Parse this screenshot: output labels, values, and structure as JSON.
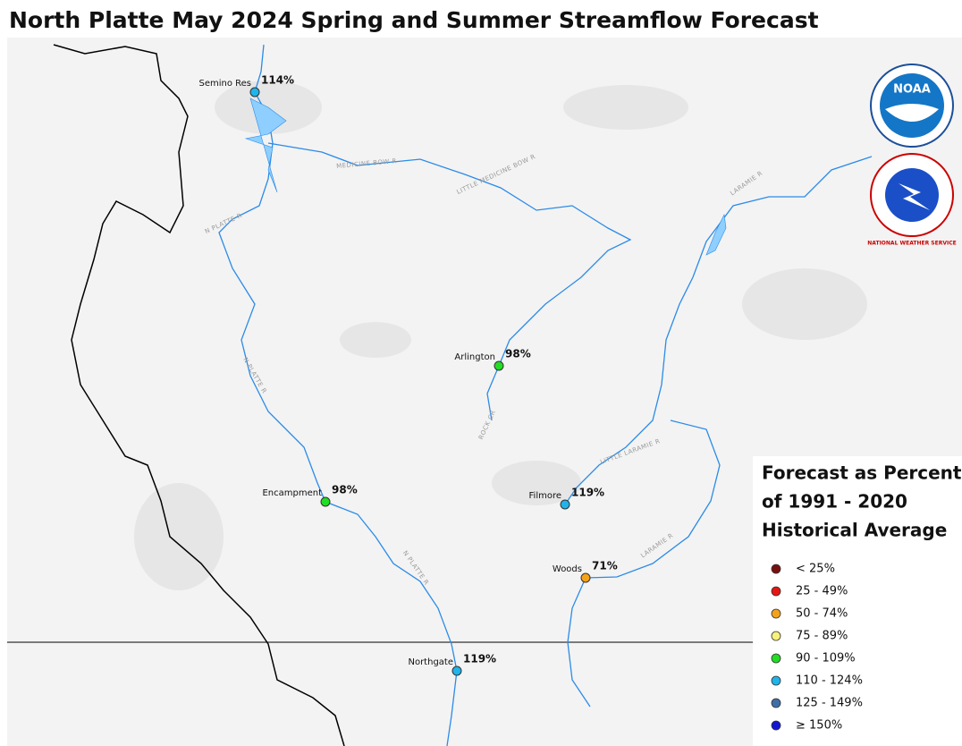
{
  "title": "North Platte May 2024 Spring and Summer Streamflow Forecast",
  "stations": [
    {
      "name": "Semino Res",
      "value": "114%",
      "color": "#1fb4ea"
    },
    {
      "name": "Arlington",
      "value": "98%",
      "color": "#22dd22"
    },
    {
      "name": "Encampment",
      "value": "98%",
      "color": "#22dd22"
    },
    {
      "name": "Filmore",
      "value": "119%",
      "color": "#1fb4ea"
    },
    {
      "name": "Woods",
      "value": "71%",
      "color": "#f5a21b"
    },
    {
      "name": "Northgate",
      "value": "119%",
      "color": "#1fb4ea"
    }
  ],
  "rivers": [
    "MEDICINE BOW R",
    "LITTLE MEDICINE BOW R",
    "N PLATTE R",
    "LARAMIE R",
    "LITTLE LARAMIE R",
    "ROCK CR",
    "N PLATTE R",
    "LARAMIE R",
    "N PLATTE R"
  ],
  "logos": {
    "noaa": "NOAA",
    "nws": "NATIONAL WEATHER SERVICE"
  },
  "legend": {
    "title": [
      "Forecast as Percent",
      "of 1991 - 2020",
      "Historical Average"
    ],
    "items": [
      {
        "label": "< 25%",
        "color": "#7a0f0f"
      },
      {
        "label": "25 - 49%",
        "color": "#e81515"
      },
      {
        "label": "50 - 74%",
        "color": "#f5a21b"
      },
      {
        "label": "75 - 89%",
        "color": "#f7f27a"
      },
      {
        "label": "90 - 109%",
        "color": "#22dd22"
      },
      {
        "label": "110 - 124%",
        "color": "#1fb4ea"
      },
      {
        "label": "125 - 149%",
        "color": "#3f6fa8"
      },
      {
        "label": "≥ 150%",
        "color": "#1414d4"
      }
    ]
  }
}
